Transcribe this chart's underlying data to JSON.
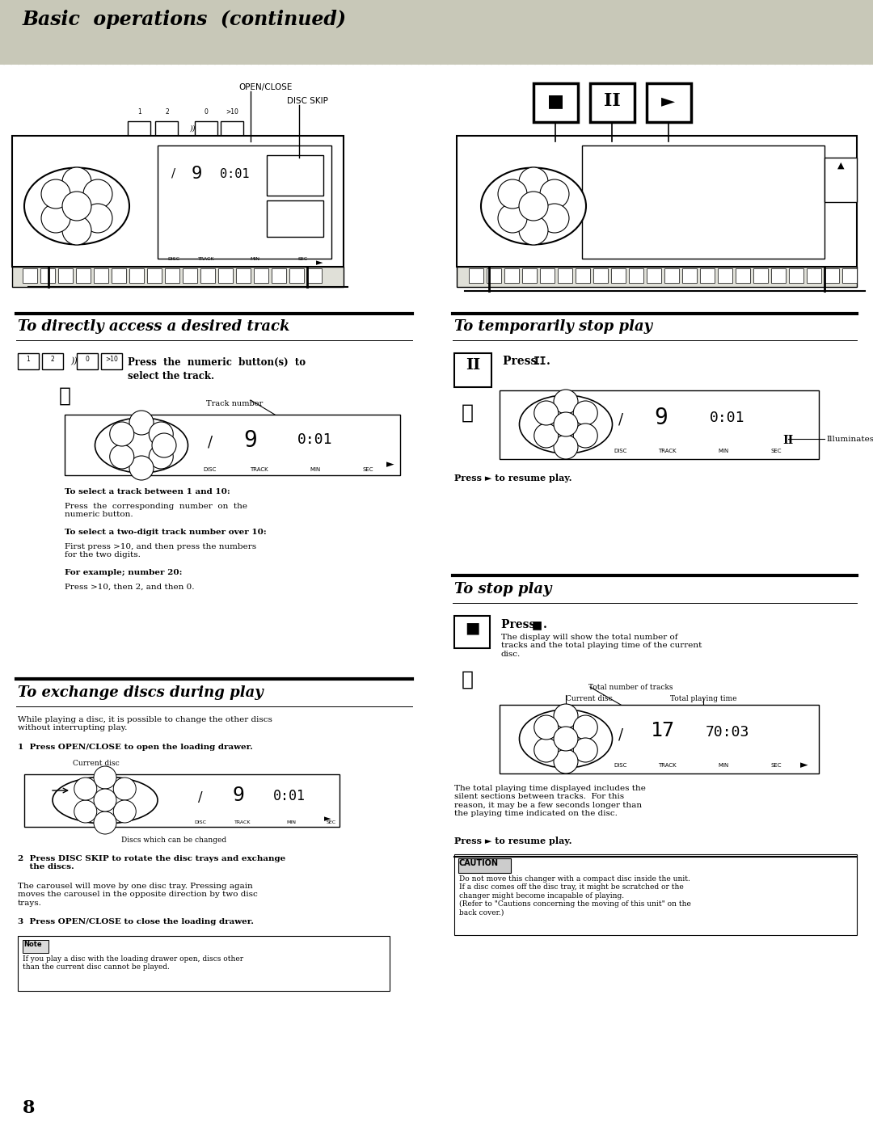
{
  "header_text": "Basic  operations  (continued)",
  "page_number": "8",
  "section1_title": "To directly access a desired track",
  "section1_bullet1_bold": "To select a track between 1 and 10:",
  "section1_bullet1": "Press  the  corresponding  number  on  the\nnumeric button.",
  "section1_bullet2_bold": "To select a two-digit track number over 10:",
  "section1_bullet2": "First press >10, and then press the numbers\nfor the two digits.",
  "section1_bullet3_bold": "For example; number 20:",
  "section1_bullet3": "Press >10, then 2, and then 0.",
  "section2_title": "To exchange discs during play",
  "section2_intro": "While playing a disc, it is possible to change the other discs\nwithout interrupting play.",
  "section2_step1_bold": "1  Press OPEN/CLOSE to open the loading drawer.",
  "section2_current_disc": "Current disc",
  "section2_discs_label": "Discs which can be changed",
  "section2_step2_bold": "2  Press DISC SKIP to rotate the disc trays and exchange\n    the discs.",
  "section2_step2": "The carousel will move by one disc tray. Pressing again\nmoves the carousel in the opposite direction by two disc\ntrays.",
  "section2_step3_bold": "3  Press OPEN/CLOSE to close the loading drawer.",
  "section2_note_title": "Note",
  "section2_note": "If you play a disc with the loading drawer open, discs other\nthan the current disc cannot be played.",
  "section3_title": "To temporarily stop play",
  "section3_illuminates": "Illuminates",
  "section3_resume": "Press ► to resume play.",
  "section4_title": "To stop play",
  "section4_desc": "The display will show the total number of\ntracks and the total playing time of the current\ndisc.",
  "section4_total_tracks": "Total number of tracks",
  "section4_current_disc": "Current disc",
  "section4_total_playing": "Total playing time",
  "section4_note": "The total playing time displayed includes the\nsilent sections between tracks.  For this\nreason, it may be a few seconds longer than\nthe playing time indicated on the disc.",
  "section4_resume": "Press ► to resume play.",
  "section4_caution_title": "CAUTION",
  "section4_caution": "Do not move this changer with a compact disc inside the unit.\nIf a disc comes off the disc tray, it might be scratched or the\nchanger might become incapable of playing.\n(Refer to \"Cautions concerning the moving of this unit\" on the\nback cover.)"
}
